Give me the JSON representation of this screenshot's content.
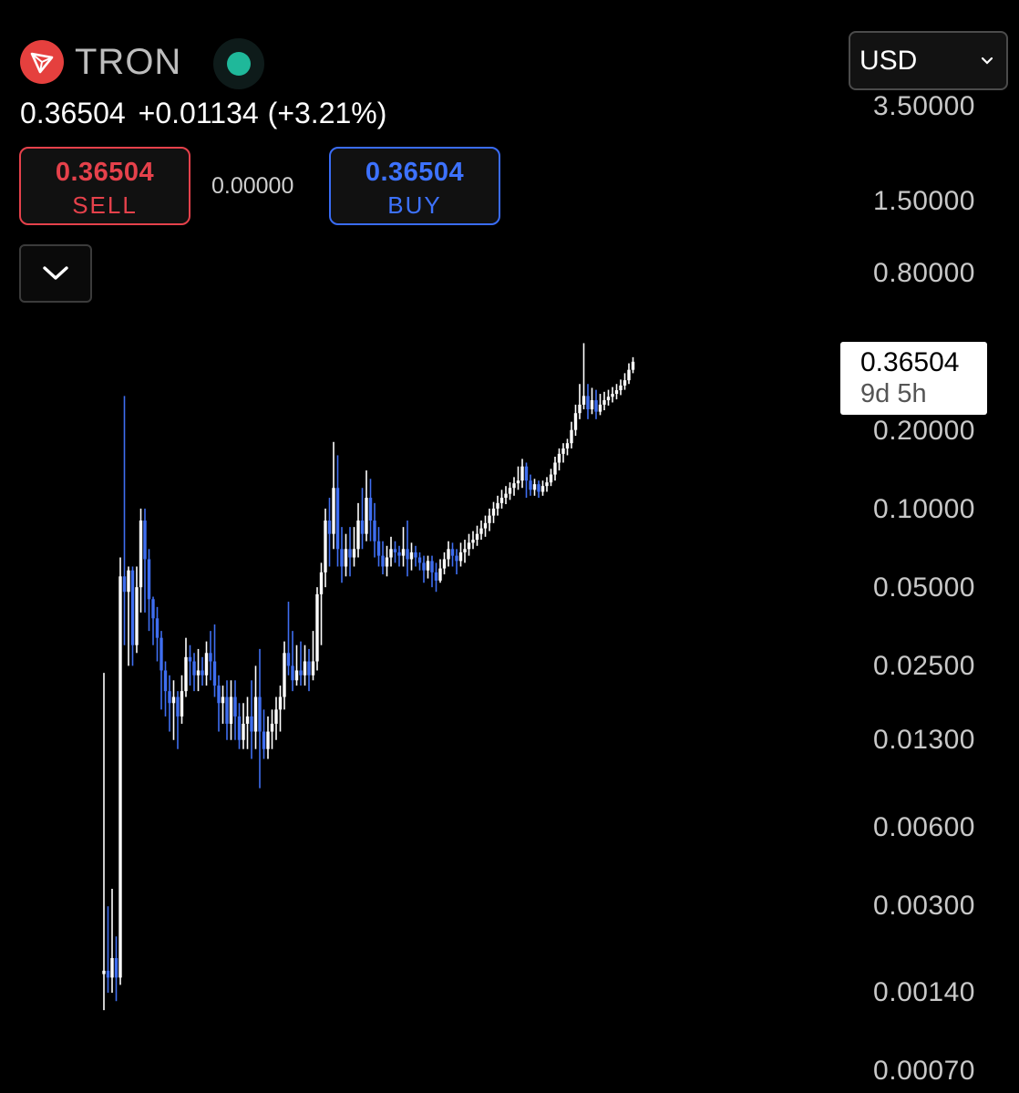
{
  "asset": {
    "symbol": "TRON",
    "logo_icon": "tron-logo-icon",
    "live_icon": "live-status-dot-icon"
  },
  "quote": {
    "price": "0.36504",
    "change": "+0.01134",
    "change_pct": "(+3.21%)"
  },
  "trade": {
    "sell_price": "0.36504",
    "sell_label": "SELL",
    "spread": "0.00000",
    "buy_price": "0.36504",
    "buy_label": "BUY"
  },
  "collapse_icon": "chevron-down-icon",
  "currency": {
    "selected": "USD",
    "icon": "chevron-down-icon"
  },
  "price_tag": {
    "price": "0.36504",
    "countdown": "9d 5h"
  },
  "colors": {
    "up": "#ffffff",
    "down": "#3f6ef0",
    "sell": "#e5414b",
    "buy": "#3d72ff",
    "live": "#1fb89a",
    "brand": "#e5403e"
  },
  "chart_data": {
    "type": "candlestick",
    "scale": "log",
    "ylim": [
      0.0007,
      3.5
    ],
    "y_ticks": [
      "3.50000",
      "1.50000",
      "0.80000",
      "0.20000",
      "0.10000",
      "0.05000",
      "0.02500",
      "0.01300",
      "0.00600",
      "0.00300",
      "0.00140",
      "0.00070"
    ],
    "candles": [
      [
        0.00165,
        0.0017,
        0.0235,
        0.0012
      ],
      [
        0.0017,
        0.0016,
        0.003,
        0.0014
      ],
      [
        0.0016,
        0.0019,
        0.0035,
        0.0014
      ],
      [
        0.0019,
        0.0016,
        0.0023,
        0.0013
      ],
      [
        0.0016,
        0.055,
        0.065,
        0.0015
      ],
      [
        0.055,
        0.048,
        0.27,
        0.03
      ],
      [
        0.048,
        0.058,
        0.06,
        0.025
      ],
      [
        0.058,
        0.03,
        0.06,
        0.025
      ],
      [
        0.03,
        0.05,
        0.06,
        0.028
      ],
      [
        0.05,
        0.09,
        0.1,
        0.04
      ],
      [
        0.09,
        0.064,
        0.1,
        0.04
      ],
      [
        0.064,
        0.045,
        0.07,
        0.034
      ],
      [
        0.045,
        0.038,
        0.046,
        0.03
      ],
      [
        0.038,
        0.032,
        0.042,
        0.026
      ],
      [
        0.032,
        0.024,
        0.034,
        0.017
      ],
      [
        0.024,
        0.02,
        0.026,
        0.016
      ],
      [
        0.02,
        0.018,
        0.023,
        0.014
      ],
      [
        0.018,
        0.019,
        0.022,
        0.013
      ],
      [
        0.019,
        0.016,
        0.02,
        0.012
      ],
      [
        0.016,
        0.02,
        0.023,
        0.015
      ],
      [
        0.02,
        0.027,
        0.032,
        0.019
      ],
      [
        0.027,
        0.026,
        0.03,
        0.021
      ],
      [
        0.026,
        0.023,
        0.028,
        0.02
      ],
      [
        0.023,
        0.024,
        0.029,
        0.02
      ],
      [
        0.024,
        0.023,
        0.027,
        0.021
      ],
      [
        0.023,
        0.028,
        0.031,
        0.021
      ],
      [
        0.028,
        0.026,
        0.034,
        0.022
      ],
      [
        0.026,
        0.021,
        0.036,
        0.019
      ],
      [
        0.021,
        0.018,
        0.023,
        0.014
      ],
      [
        0.018,
        0.019,
        0.021,
        0.015
      ],
      [
        0.019,
        0.015,
        0.022,
        0.013
      ],
      [
        0.015,
        0.019,
        0.022,
        0.013
      ],
      [
        0.019,
        0.016,
        0.022,
        0.013
      ],
      [
        0.016,
        0.013,
        0.018,
        0.012
      ],
      [
        0.013,
        0.015,
        0.018,
        0.012
      ],
      [
        0.015,
        0.016,
        0.019,
        0.012
      ],
      [
        0.016,
        0.014,
        0.022,
        0.011
      ],
      [
        0.014,
        0.019,
        0.025,
        0.012
      ],
      [
        0.019,
        0.014,
        0.029,
        0.0085
      ],
      [
        0.014,
        0.012,
        0.017,
        0.011
      ],
      [
        0.012,
        0.014,
        0.016,
        0.011
      ],
      [
        0.014,
        0.015,
        0.017,
        0.012
      ],
      [
        0.015,
        0.017,
        0.019,
        0.013
      ],
      [
        0.017,
        0.019,
        0.021,
        0.014
      ],
      [
        0.019,
        0.028,
        0.031,
        0.017
      ],
      [
        0.028,
        0.025,
        0.044,
        0.023
      ],
      [
        0.025,
        0.022,
        0.034,
        0.02
      ],
      [
        0.022,
        0.024,
        0.03,
        0.021
      ],
      [
        0.024,
        0.023,
        0.031,
        0.021
      ],
      [
        0.023,
        0.026,
        0.03,
        0.021
      ],
      [
        0.026,
        0.023,
        0.029,
        0.02
      ],
      [
        0.023,
        0.026,
        0.034,
        0.022
      ],
      [
        0.026,
        0.047,
        0.05,
        0.024
      ],
      [
        0.047,
        0.057,
        0.062,
        0.03
      ],
      [
        0.057,
        0.09,
        0.1,
        0.05
      ],
      [
        0.09,
        0.08,
        0.11,
        0.06
      ],
      [
        0.08,
        0.12,
        0.18,
        0.07
      ],
      [
        0.12,
        0.07,
        0.16,
        0.06
      ],
      [
        0.07,
        0.06,
        0.085,
        0.052
      ],
      [
        0.06,
        0.07,
        0.08,
        0.055
      ],
      [
        0.07,
        0.065,
        0.085,
        0.055
      ],
      [
        0.065,
        0.07,
        0.085,
        0.06
      ],
      [
        0.07,
        0.09,
        0.105,
        0.065
      ],
      [
        0.09,
        0.08,
        0.12,
        0.07
      ],
      [
        0.08,
        0.11,
        0.14,
        0.075
      ],
      [
        0.11,
        0.09,
        0.13,
        0.075
      ],
      [
        0.09,
        0.075,
        0.105,
        0.065
      ],
      [
        0.075,
        0.066,
        0.085,
        0.06
      ],
      [
        0.066,
        0.06,
        0.075,
        0.056
      ],
      [
        0.06,
        0.065,
        0.072,
        0.055
      ],
      [
        0.065,
        0.07,
        0.078,
        0.06
      ],
      [
        0.07,
        0.068,
        0.075,
        0.062
      ],
      [
        0.068,
        0.066,
        0.072,
        0.06
      ],
      [
        0.066,
        0.07,
        0.085,
        0.06
      ],
      [
        0.07,
        0.064,
        0.09,
        0.055
      ],
      [
        0.064,
        0.068,
        0.074,
        0.058
      ],
      [
        0.068,
        0.065,
        0.072,
        0.06
      ],
      [
        0.065,
        0.062,
        0.068,
        0.058
      ],
      [
        0.062,
        0.058,
        0.066,
        0.052
      ],
      [
        0.058,
        0.063,
        0.066,
        0.054
      ],
      [
        0.063,
        0.057,
        0.066,
        0.05
      ],
      [
        0.057,
        0.053,
        0.062,
        0.048
      ],
      [
        0.053,
        0.059,
        0.064,
        0.052
      ],
      [
        0.059,
        0.064,
        0.068,
        0.056
      ],
      [
        0.064,
        0.07,
        0.075,
        0.06
      ],
      [
        0.07,
        0.066,
        0.074,
        0.06
      ],
      [
        0.066,
        0.063,
        0.07,
        0.056
      ],
      [
        0.063,
        0.068,
        0.074,
        0.06
      ],
      [
        0.068,
        0.07,
        0.076,
        0.062
      ],
      [
        0.07,
        0.074,
        0.08,
        0.066
      ],
      [
        0.074,
        0.076,
        0.082,
        0.07
      ],
      [
        0.076,
        0.08,
        0.086,
        0.072
      ],
      [
        0.08,
        0.084,
        0.09,
        0.076
      ],
      [
        0.084,
        0.088,
        0.094,
        0.078
      ],
      [
        0.088,
        0.094,
        0.1,
        0.082
      ],
      [
        0.094,
        0.1,
        0.106,
        0.088
      ],
      [
        0.1,
        0.105,
        0.112,
        0.094
      ],
      [
        0.105,
        0.11,
        0.118,
        0.1
      ],
      [
        0.11,
        0.114,
        0.122,
        0.104
      ],
      [
        0.114,
        0.12,
        0.126,
        0.108
      ],
      [
        0.12,
        0.125,
        0.132,
        0.112
      ],
      [
        0.125,
        0.128,
        0.145,
        0.118
      ],
      [
        0.128,
        0.145,
        0.155,
        0.12
      ],
      [
        0.145,
        0.128,
        0.15,
        0.11
      ],
      [
        0.128,
        0.118,
        0.135,
        0.112
      ],
      [
        0.118,
        0.124,
        0.13,
        0.112
      ],
      [
        0.124,
        0.116,
        0.128,
        0.11
      ],
      [
        0.116,
        0.122,
        0.128,
        0.112
      ],
      [
        0.122,
        0.126,
        0.132,
        0.116
      ],
      [
        0.126,
        0.135,
        0.142,
        0.122
      ],
      [
        0.135,
        0.15,
        0.158,
        0.128
      ],
      [
        0.15,
        0.162,
        0.17,
        0.14
      ],
      [
        0.162,
        0.17,
        0.178,
        0.15
      ],
      [
        0.17,
        0.178,
        0.185,
        0.16
      ],
      [
        0.178,
        0.2,
        0.215,
        0.17
      ],
      [
        0.2,
        0.232,
        0.25,
        0.19
      ],
      [
        0.232,
        0.25,
        0.3,
        0.22
      ],
      [
        0.25,
        0.27,
        0.43,
        0.24
      ],
      [
        0.27,
        0.24,
        0.3,
        0.22
      ],
      [
        0.24,
        0.26,
        0.29,
        0.23
      ],
      [
        0.26,
        0.235,
        0.285,
        0.22
      ],
      [
        0.235,
        0.25,
        0.275,
        0.228
      ],
      [
        0.25,
        0.26,
        0.28,
        0.238
      ],
      [
        0.26,
        0.268,
        0.285,
        0.248
      ],
      [
        0.268,
        0.275,
        0.292,
        0.255
      ],
      [
        0.275,
        0.284,
        0.3,
        0.262
      ],
      [
        0.284,
        0.296,
        0.312,
        0.272
      ],
      [
        0.296,
        0.31,
        0.33,
        0.285
      ],
      [
        0.31,
        0.34,
        0.36,
        0.3
      ],
      [
        0.34,
        0.365,
        0.38,
        0.33
      ]
    ]
  }
}
